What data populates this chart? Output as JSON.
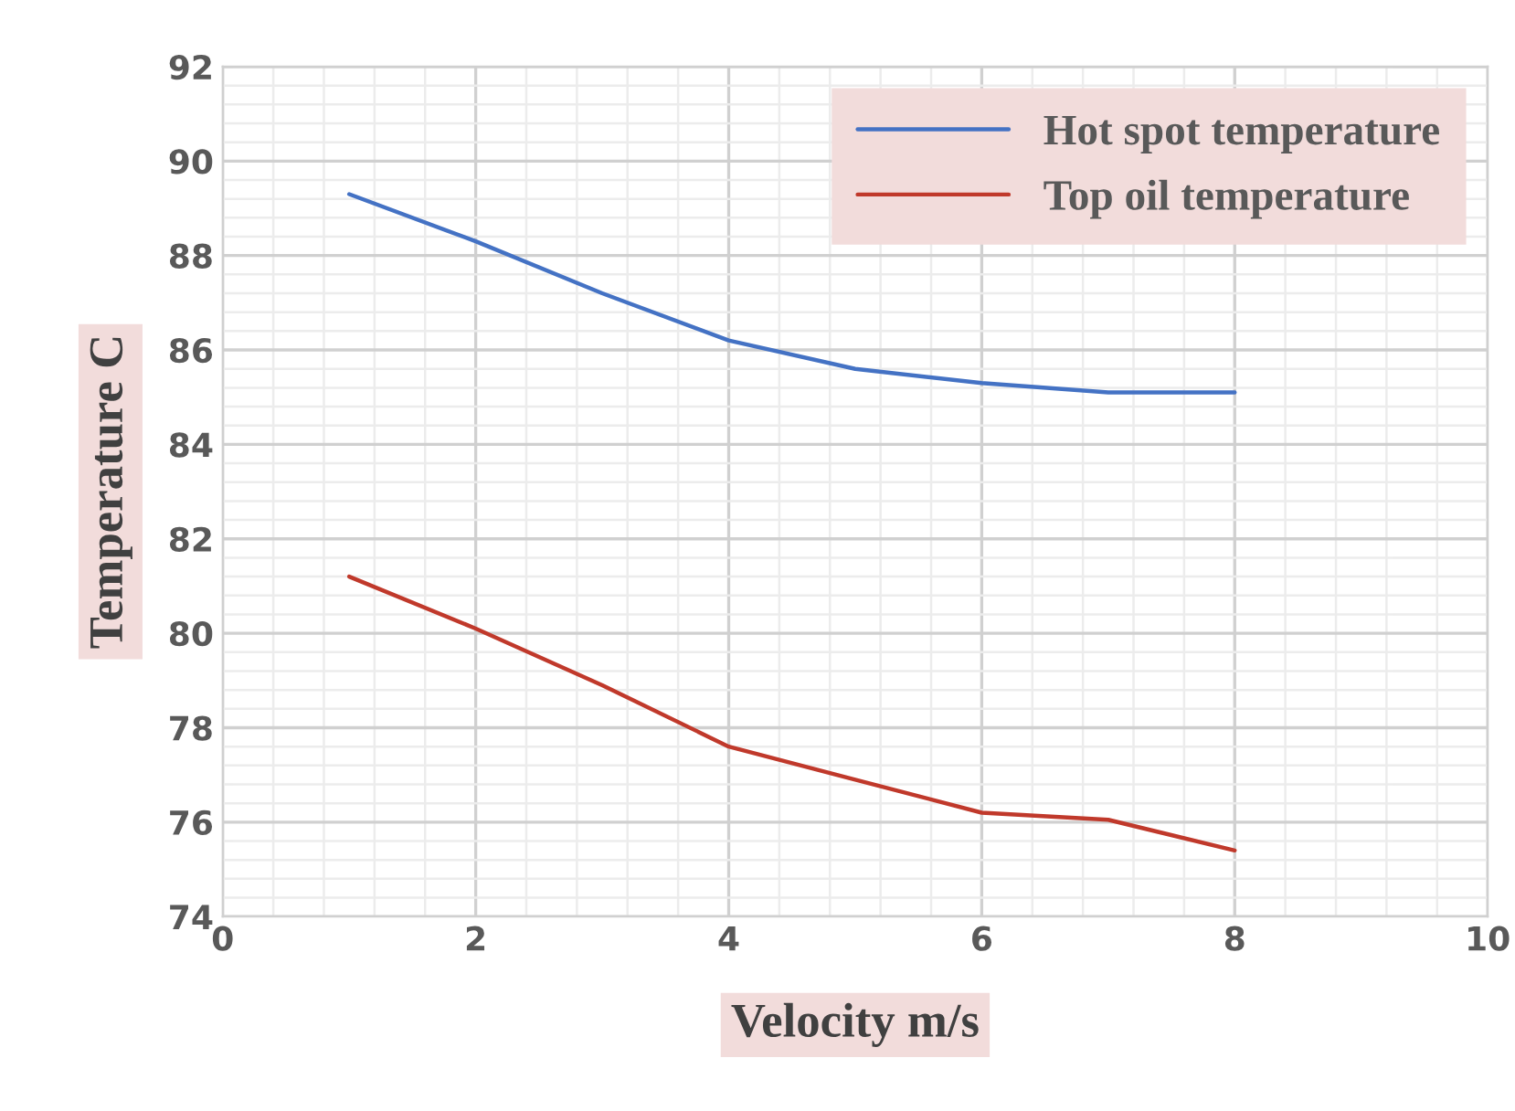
{
  "chart_data": {
    "type": "line",
    "xlabel": "Velocity m/s",
    "ylabel": "Temperature C",
    "x": [
      1,
      2,
      3,
      4,
      5,
      6,
      7,
      8
    ],
    "series": [
      {
        "name": "Hot spot temperature",
        "color": "#4472c4",
        "values": [
          89.3,
          88.3,
          87.2,
          86.2,
          85.6,
          85.3,
          85.1,
          85.1
        ]
      },
      {
        "name": "Top oil temperature",
        "color": "#c0392b",
        "values": [
          81.2,
          80.1,
          78.9,
          77.6,
          76.9,
          76.2,
          76.05,
          75.4
        ]
      }
    ],
    "xlim": [
      0,
      10
    ],
    "xticks": [
      0,
      2,
      4,
      6,
      8,
      10
    ],
    "ylim": [
      74,
      92
    ],
    "yticks": [
      74,
      76,
      78,
      80,
      82,
      84,
      86,
      88,
      90,
      92
    ],
    "grid": true,
    "legend": "top right",
    "marker": "none",
    "line_style": "solid"
  }
}
